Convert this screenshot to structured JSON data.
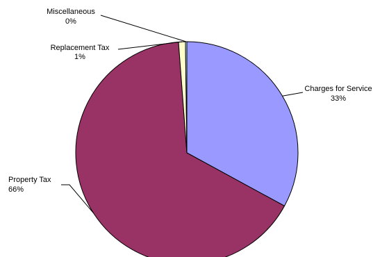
{
  "chart_data": {
    "type": "pie",
    "title": "",
    "legend": "none",
    "slices": [
      {
        "label": "Charges for Service",
        "value": 33,
        "display": "33%",
        "color": "#9999ff"
      },
      {
        "label": "Property Tax",
        "value": 66,
        "display": "66%",
        "color": "#993366"
      },
      {
        "label": "Replacement Tax",
        "value": 1,
        "display": "1%",
        "color": "#ffffcc"
      },
      {
        "label": "Miscellaneous",
        "value": 0.2,
        "display": "0%",
        "color": "#ccffff"
      }
    ]
  }
}
